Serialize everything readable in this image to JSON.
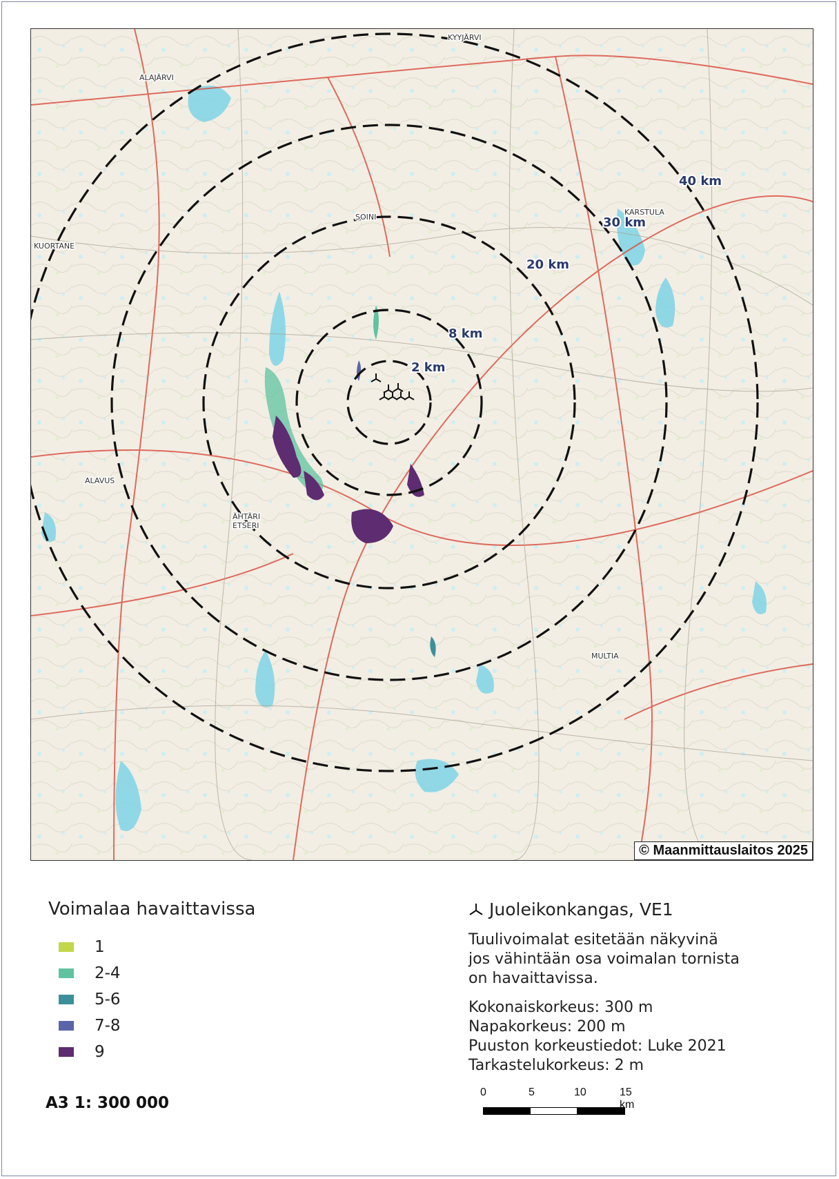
{
  "map": {
    "copyright": "© Maanmittauslaitos 2025",
    "rings": [
      {
        "label": "2 km"
      },
      {
        "label": "8 km"
      },
      {
        "label": "20 km"
      },
      {
        "label": "30 km"
      },
      {
        "label": "40 km"
      }
    ],
    "places": [
      "ALAJÄRVI",
      "KYYJÄRVI",
      "SOINI",
      "KUORTANE",
      "KARSTULA",
      "ALAVUS",
      "ÄHTÄRI",
      "ETSERI",
      "MULTIA"
    ],
    "colors": {
      "ring_label": "#2b3a6b",
      "water": "#7fd3e6",
      "road": "#d94a3a"
    }
  },
  "legend": {
    "title": "Voimalaa havaittavissa",
    "items": [
      {
        "label": "1",
        "color": "#c2d84a"
      },
      {
        "label": "2-4",
        "color": "#5fc3a0"
      },
      {
        "label": "5-6",
        "color": "#3e8f9c"
      },
      {
        "label": "7-8",
        "color": "#5965a8"
      },
      {
        "label": "9",
        "color": "#5e2c70"
      }
    ]
  },
  "scale": {
    "text": "A3 1: 300 000"
  },
  "info": {
    "title": "Juoleikonkangas, VE1",
    "description_lines": [
      "Tuulivoimalat esitetään näkyvinä",
      "jos vähintään osa voimalan tornista",
      "on havaittavissa."
    ],
    "spec_lines": [
      "Kokonaiskorkeus: 300 m",
      "Napakorkeus: 200 m",
      "Puuston korkeustiedot: Luke 2021",
      "Tarkastelukorkeus: 2 m"
    ]
  },
  "scalebar": {
    "ticks": [
      "0",
      "5",
      "10",
      "15 km"
    ]
  }
}
